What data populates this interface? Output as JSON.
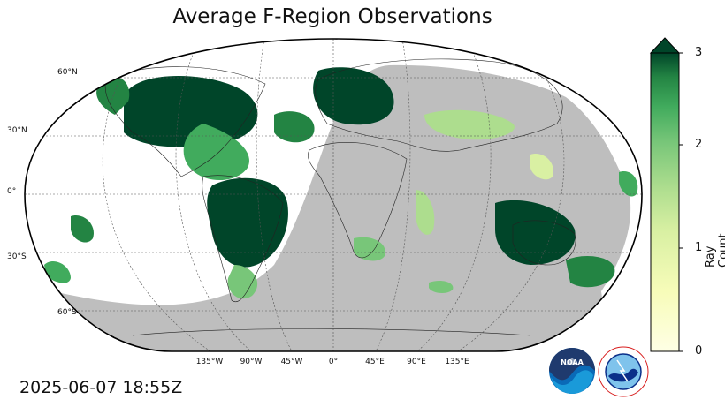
{
  "title": "Average F-Region Observations",
  "timestamp": "2025-06-07 18:55Z",
  "map": {
    "projection": "robinson",
    "central_longitude": 0,
    "colormap": "YlGn",
    "night_shading_color": "#bebebe",
    "latitude_labels": [
      "60°N",
      "30°N",
      "0°",
      "30°S",
      "60°S"
    ],
    "longitude_labels": [
      "135°W",
      "90°W",
      "45°W",
      "0°",
      "45°E",
      "90°E",
      "135°E"
    ]
  },
  "colorbar": {
    "label": "Ray Count Per Voxel",
    "min": 0,
    "max": 3,
    "extend": "max",
    "ticks": [
      "0",
      "1",
      "2",
      "3"
    ],
    "color_low": "#ffffe5",
    "color_high": "#004529"
  },
  "logos": {
    "noaa": "NOAA",
    "nws": "NATIONAL WEATHER SERVICE"
  }
}
